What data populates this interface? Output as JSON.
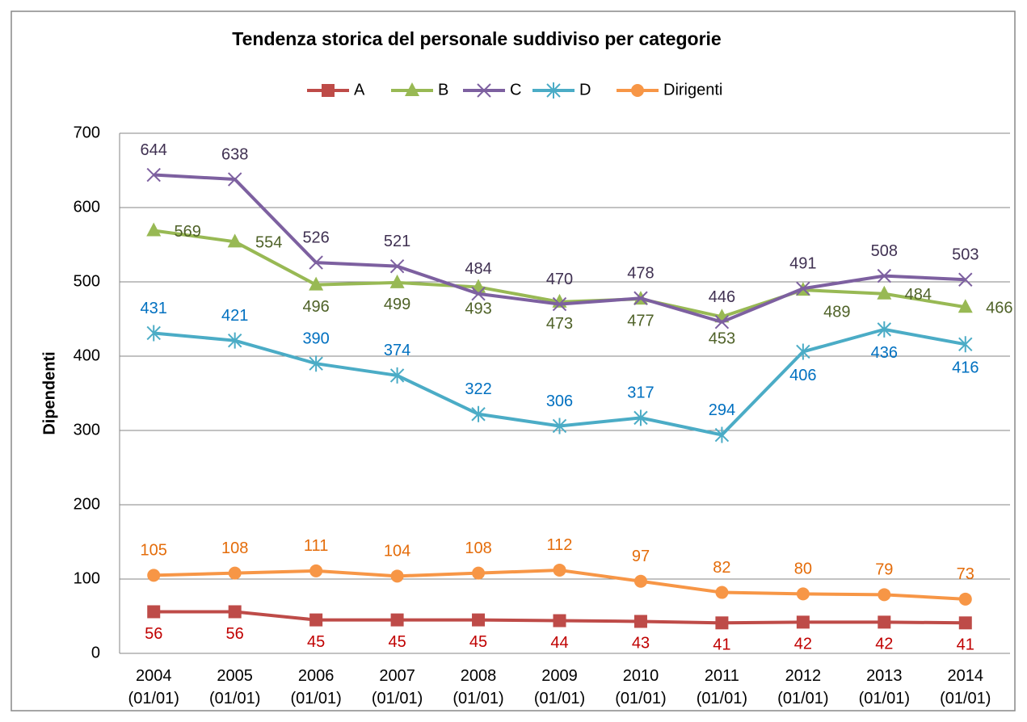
{
  "chart_data": {
    "type": "line",
    "title": "Tendenza storica del personale suddiviso per categorie",
    "y_label": "Dipendenti",
    "categories": [
      [
        "2004",
        "(01/01)"
      ],
      [
        "2005",
        "(01/01)"
      ],
      [
        "2006",
        "(01/01)"
      ],
      [
        "2007",
        "(01/01)"
      ],
      [
        "2008",
        "(01/01)"
      ],
      [
        "2009",
        "(01/01)"
      ],
      [
        "2010",
        "(01/01)"
      ],
      [
        "2011",
        "(01/01)"
      ],
      [
        "2012",
        "(01/01)"
      ],
      [
        "2013",
        "(01/01)"
      ],
      [
        "2014",
        "(01/01)"
      ]
    ],
    "series": [
      {
        "name": "A",
        "color": "#be4b48",
        "label_color": "#c00000",
        "marker": "square",
        "values": [
          56,
          56,
          45,
          45,
          45,
          44,
          43,
          41,
          42,
          42,
          41
        ]
      },
      {
        "name": "B",
        "color": "#98b954",
        "label_color": "#4f6228",
        "marker": "triangle",
        "values": [
          569,
          554,
          496,
          499,
          493,
          473,
          477,
          453,
          489,
          484,
          466
        ]
      },
      {
        "name": "C",
        "color": "#7d60a0",
        "label_color": "#403152",
        "marker": "x",
        "values": [
          644,
          638,
          526,
          521,
          484,
          470,
          478,
          446,
          491,
          508,
          503
        ]
      },
      {
        "name": "D",
        "color": "#4bacc6",
        "label_color": "#0070c0",
        "marker": "star",
        "values": [
          431,
          421,
          390,
          374,
          322,
          306,
          317,
          294,
          406,
          436,
          416
        ]
      },
      {
        "name": "Dirigenti",
        "color": "#f79646",
        "label_color": "#e46c0a",
        "marker": "circle",
        "values": [
          105,
          108,
          111,
          104,
          108,
          112,
          97,
          82,
          80,
          79,
          73
        ]
      }
    ],
    "ylim": [
      0,
      700
    ],
    "yticks": [
      0,
      100,
      200,
      300,
      400,
      500,
      600,
      700
    ],
    "grid": true,
    "legend": "top"
  }
}
